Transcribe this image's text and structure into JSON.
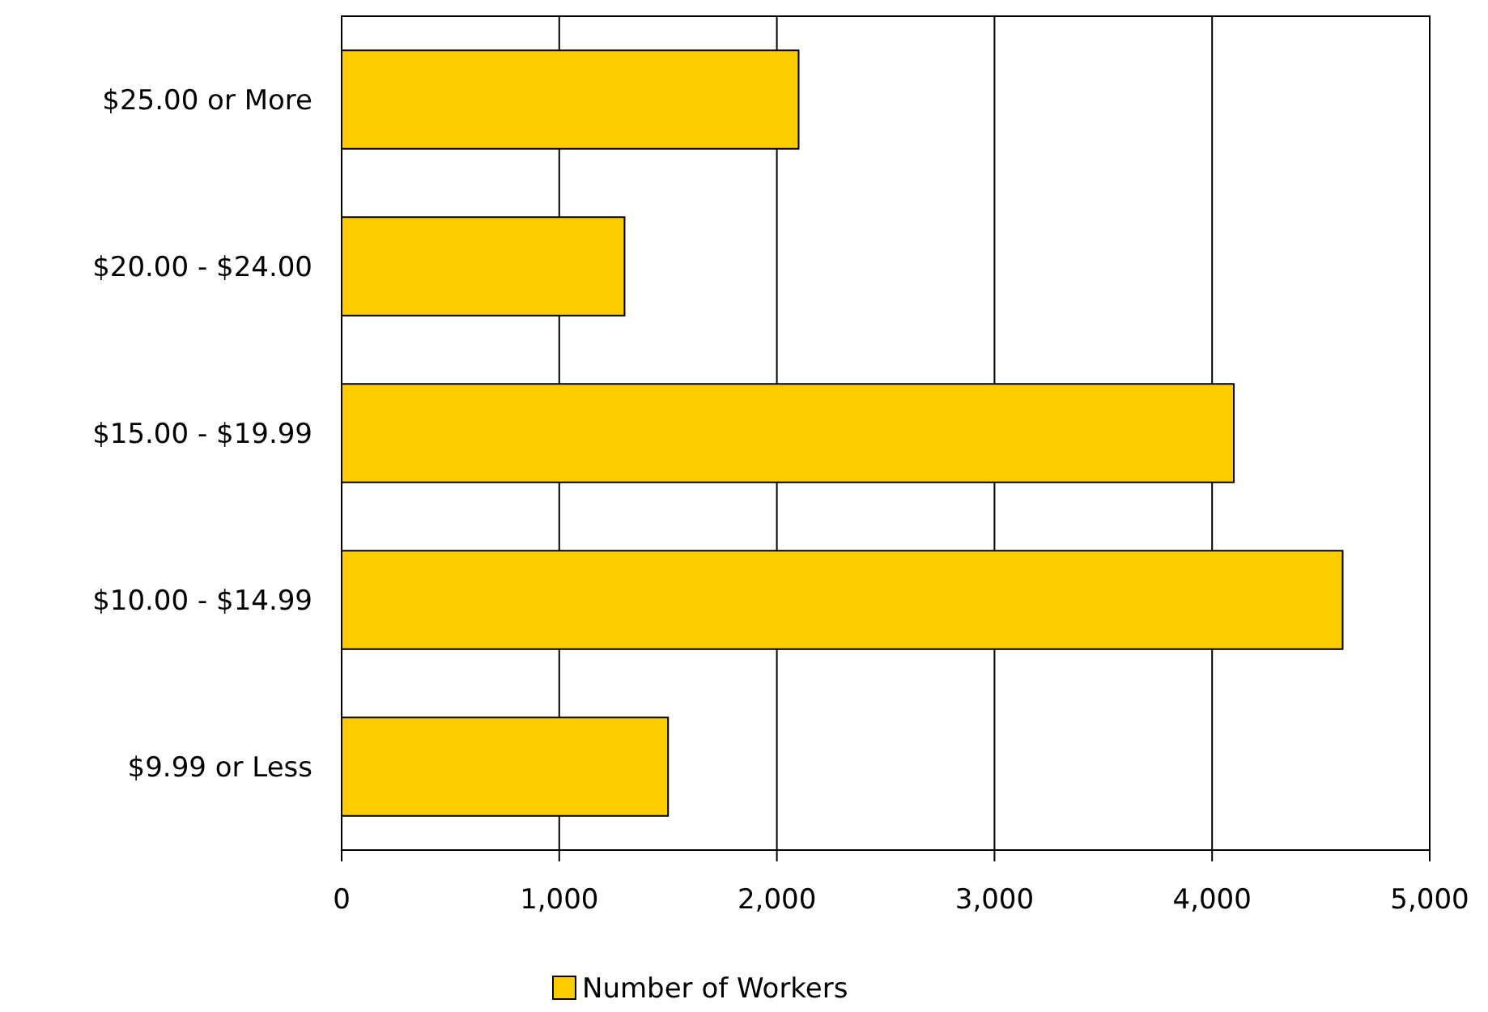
{
  "chart_data": {
    "type": "bar",
    "orientation": "horizontal",
    "categories": [
      "$25.00 or More",
      "$20.00 - $24.00",
      "$15.00 - $19.99",
      "$10.00 - $14.99",
      "$9.99 or Less"
    ],
    "series": [
      {
        "name": "Number of Workers",
        "color": "#ffcc00",
        "values": [
          2100,
          1300,
          4100,
          4600,
          1500
        ]
      }
    ],
    "xlim": [
      0,
      5000
    ],
    "xticks": [
      0,
      {
        "value": 1000,
        "label": "1,000"
      },
      {
        "value": 2000,
        "label": "2,000"
      },
      {
        "value": 3000,
        "label": "3,000"
      },
      {
        "value": 4000,
        "label": "4,000"
      },
      {
        "value": 5000,
        "label": "5,000"
      }
    ],
    "grid": "x",
    "legend": "bottom"
  }
}
